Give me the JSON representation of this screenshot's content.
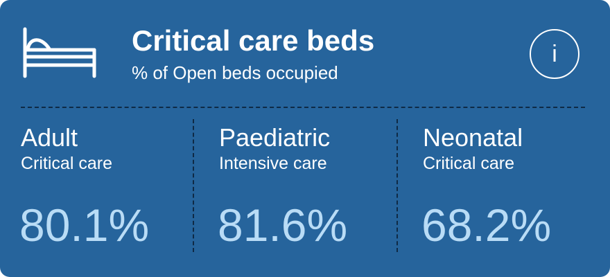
{
  "card": {
    "title": "Critical care beds",
    "subtitle": "% of Open beds occupied",
    "icon": "bed-icon",
    "info_button": {
      "label": "i",
      "icon": "info-icon"
    },
    "colors": {
      "background": "#26649c",
      "text": "#ffffff",
      "value": "#b9dcf6",
      "divider": "#0f2a45"
    },
    "columns": [
      {
        "heading": "Adult",
        "subheading": "Critical care",
        "value": "80.1%"
      },
      {
        "heading": "Paediatric",
        "subheading": "Intensive care",
        "value": "81.6%"
      },
      {
        "heading": "Neonatal",
        "subheading": "Critical care",
        "value": "68.2%"
      }
    ]
  }
}
